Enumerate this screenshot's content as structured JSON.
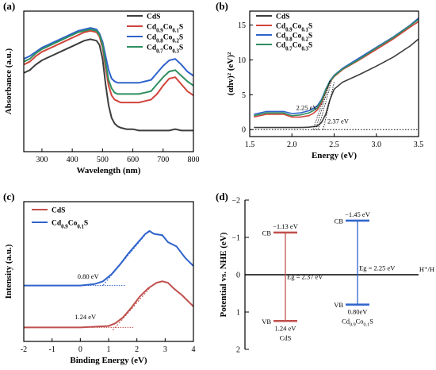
{
  "panels": {
    "a": {
      "letter": "(a)"
    },
    "b": {
      "letter": "(b)"
    },
    "c": {
      "letter": "(c)"
    },
    "d": {
      "letter": "(d)"
    }
  },
  "colors": {
    "CdS": "#3d3d3d",
    "Co01": "#d1453b",
    "Co02": "#2f63cc",
    "Co03": "#2f8f5f",
    "d_left": "#c0504d",
    "d_right": "#2f63cc",
    "d_left_text": "#c0504d",
    "d_right_text": "#2f63cc"
  },
  "chart_data": [
    {
      "panel": "a",
      "type": "line",
      "xlabel": "Wavelength (nm)",
      "ylabel": "Absorbance (a.u.)",
      "xlim": [
        240,
        800
      ],
      "ylim": [
        0,
        1.0
      ],
      "xticks": [
        300,
        400,
        500,
        600,
        700,
        800
      ],
      "yticks": [],
      "legend_position": "top-right",
      "series": [
        {
          "name": "CdS",
          "key": "CdS",
          "x": [
            240,
            260,
            280,
            300,
            320,
            340,
            360,
            380,
            400,
            420,
            440,
            460,
            480,
            490,
            500,
            510,
            520,
            530,
            540,
            550,
            560,
            580,
            600,
            620,
            640,
            660,
            680,
            700,
            720,
            740,
            760,
            780,
            800
          ],
          "y": [
            0.56,
            0.58,
            0.62,
            0.65,
            0.67,
            0.69,
            0.71,
            0.73,
            0.75,
            0.77,
            0.79,
            0.8,
            0.79,
            0.76,
            0.66,
            0.48,
            0.33,
            0.24,
            0.2,
            0.18,
            0.17,
            0.16,
            0.16,
            0.15,
            0.15,
            0.15,
            0.15,
            0.15,
            0.15,
            0.16,
            0.15,
            0.15,
            0.15
          ]
        },
        {
          "name": "Cd0.9Co0.1S",
          "key": "Co01",
          "x": [
            240,
            260,
            280,
            300,
            320,
            340,
            360,
            380,
            400,
            420,
            440,
            460,
            480,
            490,
            500,
            510,
            520,
            530,
            540,
            550,
            560,
            580,
            600,
            620,
            640,
            660,
            680,
            700,
            720,
            740,
            760,
            780,
            800
          ],
          "y": [
            0.62,
            0.64,
            0.68,
            0.71,
            0.73,
            0.75,
            0.77,
            0.79,
            0.81,
            0.83,
            0.85,
            0.86,
            0.85,
            0.82,
            0.74,
            0.6,
            0.47,
            0.4,
            0.37,
            0.36,
            0.35,
            0.35,
            0.35,
            0.35,
            0.36,
            0.37,
            0.41,
            0.47,
            0.52,
            0.53,
            0.48,
            0.43,
            0.4
          ]
        },
        {
          "name": "Cd0.8Co0.2S",
          "key": "Co02",
          "x": [
            240,
            260,
            280,
            300,
            320,
            340,
            360,
            380,
            400,
            420,
            440,
            460,
            480,
            490,
            500,
            510,
            520,
            530,
            540,
            550,
            560,
            580,
            600,
            620,
            640,
            660,
            680,
            700,
            720,
            740,
            760,
            780,
            800
          ],
          "y": [
            0.66,
            0.68,
            0.71,
            0.74,
            0.76,
            0.78,
            0.8,
            0.82,
            0.84,
            0.86,
            0.87,
            0.88,
            0.87,
            0.84,
            0.78,
            0.68,
            0.58,
            0.52,
            0.5,
            0.49,
            0.49,
            0.49,
            0.49,
            0.49,
            0.5,
            0.51,
            0.56,
            0.61,
            0.65,
            0.66,
            0.62,
            0.57,
            0.54
          ]
        },
        {
          "name": "Cd0.7Co0.3S",
          "key": "Co03",
          "x": [
            240,
            260,
            280,
            300,
            320,
            340,
            360,
            380,
            400,
            420,
            440,
            460,
            480,
            490,
            500,
            510,
            520,
            530,
            540,
            550,
            560,
            580,
            600,
            620,
            640,
            660,
            680,
            700,
            720,
            740,
            760,
            780,
            800
          ],
          "y": [
            0.64,
            0.66,
            0.7,
            0.73,
            0.75,
            0.77,
            0.79,
            0.81,
            0.83,
            0.85,
            0.86,
            0.87,
            0.86,
            0.83,
            0.76,
            0.63,
            0.51,
            0.45,
            0.42,
            0.41,
            0.41,
            0.41,
            0.41,
            0.41,
            0.42,
            0.43,
            0.48,
            0.53,
            0.57,
            0.58,
            0.54,
            0.5,
            0.47
          ]
        }
      ]
    },
    {
      "panel": "b",
      "type": "line",
      "xlabel": "Energy (eV)",
      "ylabel": "(αhv)² (eV)²",
      "xlim": [
        1.5,
        3.5
      ],
      "ylim": [
        -1,
        17
      ],
      "xticks": [
        1.5,
        2.0,
        2.5,
        3.0,
        3.5
      ],
      "yticks": [
        0,
        5,
        10,
        15
      ],
      "legend_position": "top-left",
      "annotations": [
        {
          "text": "2.25 eV",
          "x": 2.25
        },
        {
          "text": "2.37 eV",
          "x": 2.37
        }
      ],
      "series": [
        {
          "name": "CdS",
          "key": "CdS",
          "x": [
            1.55,
            1.7,
            1.9,
            2.1,
            2.2,
            2.3,
            2.35,
            2.4,
            2.45,
            2.5,
            2.6,
            2.8,
            3.0,
            3.2,
            3.4,
            3.5
          ],
          "y": [
            0.3,
            0.3,
            0.3,
            0.3,
            0.35,
            0.5,
            1.0,
            2.2,
            4.3,
            5.8,
            6.8,
            7.9,
            9.1,
            10.4,
            12.0,
            13.0
          ]
        },
        {
          "name": "Cd0.9Co0.1S",
          "key": "Co01",
          "x": [
            1.55,
            1.7,
            1.9,
            2.0,
            2.1,
            2.2,
            2.25,
            2.3,
            2.35,
            2.4,
            2.45,
            2.5,
            2.6,
            2.8,
            3.0,
            3.2,
            3.4,
            3.5
          ],
          "y": [
            1.8,
            2.2,
            2.2,
            1.8,
            1.8,
            2.0,
            2.3,
            2.8,
            3.8,
            5.5,
            6.8,
            7.6,
            8.6,
            10.0,
            11.5,
            13.0,
            14.7,
            15.5
          ]
        },
        {
          "name": "Cd0.8Co0.2S",
          "key": "Co02",
          "x": [
            1.55,
            1.7,
            1.9,
            2.0,
            2.1,
            2.2,
            2.25,
            2.3,
            2.35,
            2.4,
            2.45,
            2.5,
            2.6,
            2.8,
            3.0,
            3.2,
            3.4,
            3.5
          ],
          "y": [
            2.2,
            2.6,
            2.6,
            2.3,
            2.4,
            2.7,
            3.0,
            3.4,
            4.3,
            5.8,
            7.0,
            7.8,
            8.8,
            10.3,
            11.8,
            13.3,
            15.0,
            16.0
          ]
        },
        {
          "name": "Cd0.7Co0.3S",
          "key": "Co03",
          "x": [
            1.55,
            1.7,
            1.9,
            2.0,
            2.1,
            2.2,
            2.25,
            2.3,
            2.35,
            2.4,
            2.45,
            2.5,
            2.6,
            2.8,
            3.0,
            3.2,
            3.4,
            3.5
          ],
          "y": [
            2.0,
            2.4,
            2.4,
            2.0,
            2.1,
            2.4,
            2.7,
            3.1,
            4.1,
            5.7,
            6.9,
            7.7,
            8.7,
            10.1,
            11.7,
            13.2,
            14.9,
            15.8
          ]
        }
      ]
    },
    {
      "panel": "c",
      "type": "line",
      "xlabel": "Binding Energy (eV)",
      "ylabel": "Intensity (a.u.)",
      "xlim": [
        -2,
        4
      ],
      "ylim": [
        0,
        1.0
      ],
      "xticks": [
        -2,
        -1,
        0,
        1,
        2,
        3,
        4
      ],
      "yticks": [],
      "legend_position": "top-left",
      "annotations": [
        {
          "text": "0.80 eV",
          "x": 0.8
        },
        {
          "text": "1.24 eV",
          "x": 1.24
        }
      ],
      "series": [
        {
          "name": "CdS",
          "key": "d_left",
          "x": [
            -2.0,
            -1.0,
            0.0,
            0.5,
            1.0,
            1.24,
            1.5,
            1.8,
            2.1,
            2.4,
            2.7,
            2.9,
            3.1,
            3.3,
            3.6,
            4.0
          ],
          "y": [
            0.1,
            0.1,
            0.1,
            0.105,
            0.11,
            0.13,
            0.17,
            0.24,
            0.32,
            0.38,
            0.42,
            0.43,
            0.42,
            0.38,
            0.33,
            0.25
          ]
        },
        {
          "name": "Cd0.9Co0.1S",
          "key": "d_right",
          "x": [
            -2.0,
            -1.0,
            0.0,
            0.5,
            0.8,
            1.1,
            1.4,
            1.7,
            2.0,
            2.3,
            2.45,
            2.6,
            2.9,
            3.1,
            3.4,
            3.7,
            4.0
          ],
          "y": [
            0.4,
            0.4,
            0.4,
            0.41,
            0.43,
            0.48,
            0.55,
            0.63,
            0.7,
            0.77,
            0.79,
            0.77,
            0.76,
            0.71,
            0.68,
            0.6,
            0.54
          ]
        }
      ]
    },
    {
      "panel": "d",
      "type": "diagram",
      "ylabel": "Potential vs. NHE (eV)",
      "ylim": [
        2,
        -2
      ],
      "yticks": [
        -2,
        -1,
        0,
        1,
        2
      ],
      "reference_label": "H⁺/H",
      "materials": [
        {
          "name": "CdS",
          "key": "d_left",
          "cb_value": -1.13,
          "vb_value": 1.24,
          "cb_text": "−1.13 eV",
          "vb_text": "1.24 eV",
          "cb_tag": "CB",
          "vb_tag": "VB",
          "gap_text": "Eg = 2.37 eV"
        },
        {
          "name": "Cd0.9Co0.1S",
          "key": "d_right",
          "cb_value": -1.45,
          "vb_value": 0.8,
          "cb_text": "−1.45 eV",
          "vb_text": "0.80eV",
          "cb_tag": "CB",
          "vb_tag": "VB",
          "gap_text": "Eg = 2.25 eV"
        }
      ]
    }
  ]
}
